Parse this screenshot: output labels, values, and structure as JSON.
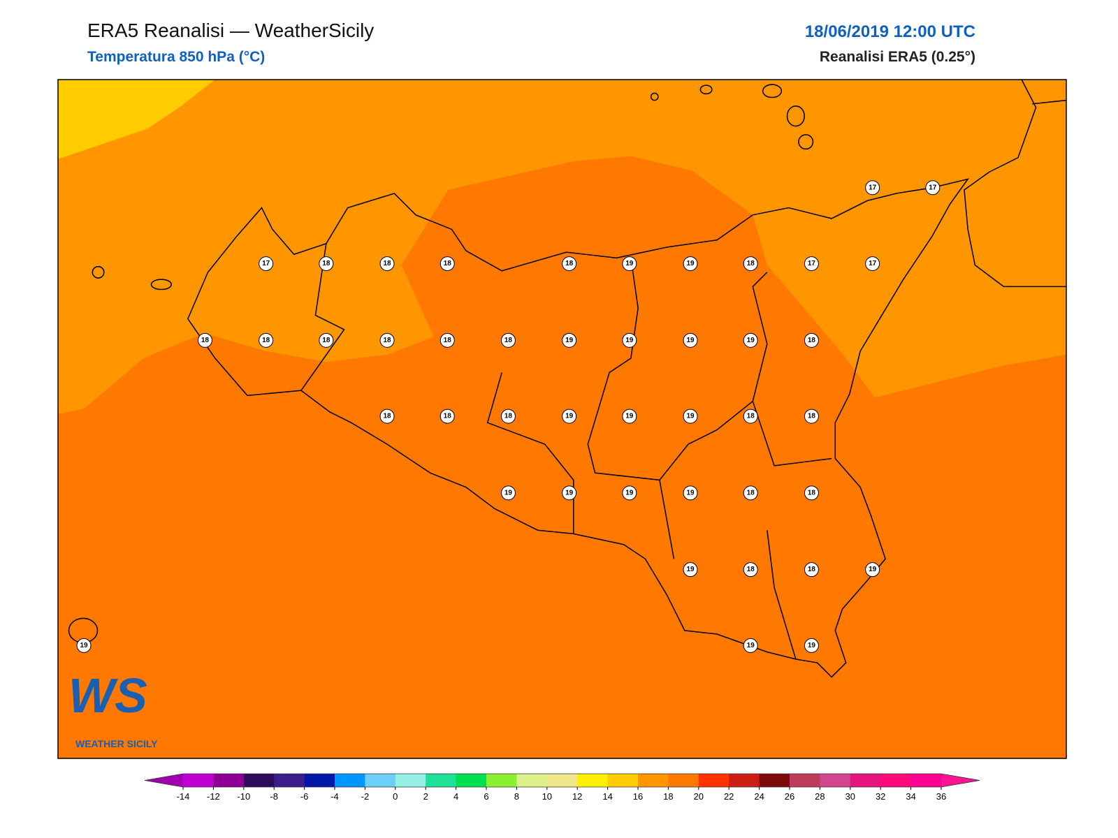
{
  "header": {
    "title": "ERA5 Reanalisi — WeatherSicily",
    "subtitle": "Temperatura 850 hPa (°C)",
    "datetime": "18/06/2019 12:00 UTC",
    "source": "Reanalisi ERA5 (0.25°)"
  },
  "stations": [
    17,
    17,
    17,
    18,
    18,
    18,
    18,
    19,
    19,
    18,
    17,
    17,
    18,
    18,
    18,
    18,
    18,
    18,
    19,
    19,
    19,
    19,
    18,
    18,
    18,
    18,
    19,
    19,
    19,
    18,
    18,
    19,
    19,
    19,
    19,
    18,
    18,
    19,
    18,
    18,
    19,
    19,
    19,
    19
  ],
  "colorbar": {
    "ticks": [
      -14,
      -12,
      -10,
      -8,
      -6,
      -4,
      -2,
      0,
      2,
      4,
      6,
      8,
      10,
      12,
      14,
      16,
      18,
      20,
      22,
      24,
      26,
      28,
      30,
      32,
      34,
      36
    ],
    "colors": [
      "#c000d0",
      "#8c0096",
      "#2d0a5a",
      "#3c1e8c",
      "#0018a8",
      "#0096ff",
      "#6ccff6",
      "#96f0e6",
      "#1ee096",
      "#00e050",
      "#8cf032",
      "#dcf08c",
      "#f0e68c",
      "#fff000",
      "#ffcc00",
      "#ff9600",
      "#ff7800",
      "#ff3200",
      "#cd1e14",
      "#7d0a0a",
      "#be3c5a",
      "#d24690",
      "#e6147d",
      "#ff0a78",
      "#ff0090"
    ],
    "under_color": "#a000b0",
    "over_color": "#ff1493"
  },
  "logo": {
    "mark": "WS",
    "text": "WEATHER SICILY"
  }
}
